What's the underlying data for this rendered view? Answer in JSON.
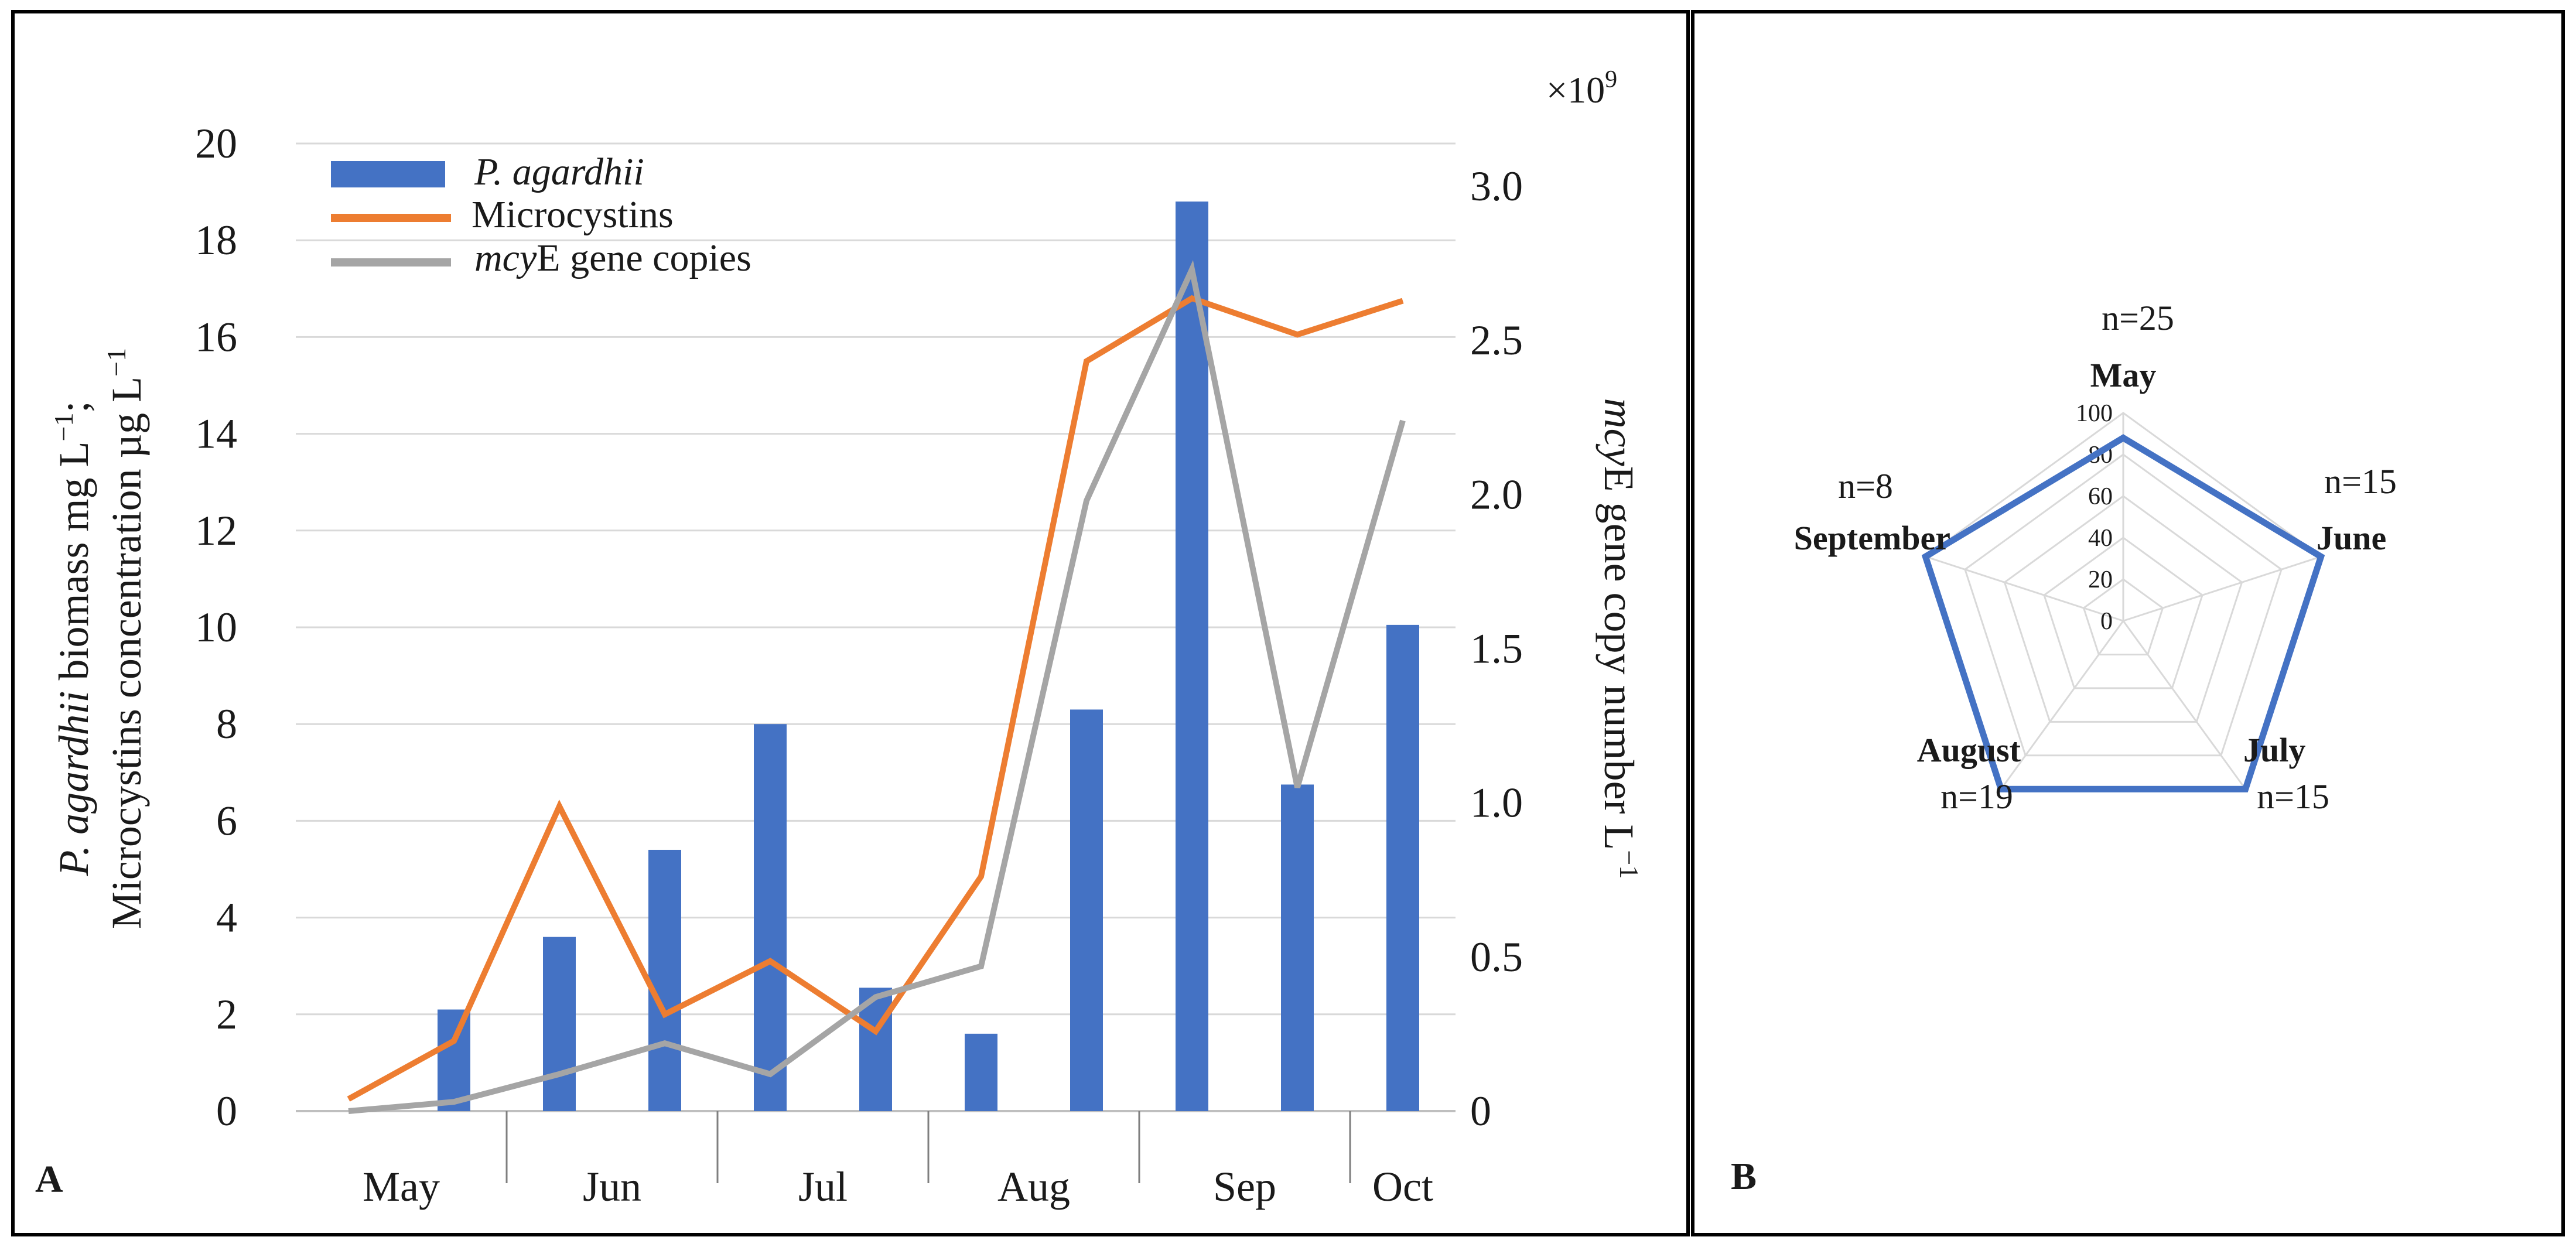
{
  "panels": {
    "A": {
      "letter": "A"
    },
    "B": {
      "letter": "B"
    }
  },
  "chart_data": [
    {
      "panel": "A",
      "type": "bar",
      "title": "",
      "xlabel": "",
      "ylabel_italic": "P. agardhii",
      "ylabel_rest_1": " biomass mg L",
      "ylabel_sup_1": "−1",
      "ylabel_rest_2": ";",
      "ylabel_line2": "Microcystins concentration µg L",
      "ylabel_sup_2": "−1",
      "y2label_italic": "mcy",
      "y2label_rest": "E gene copy number L",
      "y2label_sup": "−1",
      "y2_multiplier_base": "×10",
      "y2_multiplier_exp": "9",
      "ylim": [
        0,
        20
      ],
      "yticks": [
        "0",
        "2",
        "4",
        "6",
        "8",
        "10",
        "12",
        "14",
        "16",
        "18",
        "20"
      ],
      "y2lim": [
        0,
        3.0
      ],
      "y2ticks": [
        "0",
        "0.5",
        "1.0",
        "1.5",
        "2.0",
        "2.5",
        "3.0"
      ],
      "month_groups": [
        "May",
        "Jun",
        "Jul",
        "Aug",
        "Sep",
        "Oct"
      ],
      "month_point_counts": [
        2,
        2,
        2,
        2,
        2,
        1
      ],
      "series": [
        {
          "name": "P. agardhii",
          "legend_label": "P. agardhii",
          "kind": "bar",
          "axis": "left",
          "color": "#4472c4",
          "values": [
            null,
            2.1,
            3.6,
            5.4,
            8.0,
            2.55,
            1.6,
            8.3,
            18.8,
            6.75,
            10.05
          ]
        },
        {
          "name": "Microcystins",
          "legend_label": "Microcystins",
          "kind": "line",
          "axis": "left",
          "color": "#ed7d31",
          "values": [
            0.25,
            1.45,
            6.3,
            2.0,
            3.1,
            1.65,
            4.85,
            15.5,
            16.8,
            16.05,
            16.75
          ]
        },
        {
          "name": "mcyE gene copies",
          "legend_label_italic": "mcy",
          "legend_label_rest": "E gene copies",
          "kind": "line",
          "axis": "right",
          "color": "#a5a5a5",
          "values": [
            0.0,
            0.03,
            0.12,
            0.22,
            0.12,
            0.37,
            0.47,
            1.98,
            2.73,
            1.05,
            2.24
          ]
        }
      ]
    },
    {
      "panel": "B",
      "type": "radar",
      "title": "",
      "rlim": [
        0,
        100
      ],
      "rticks": [
        "0",
        "20",
        "40",
        "60",
        "80",
        "100"
      ],
      "color": "#4472c4",
      "axes": [
        {
          "label": "May",
          "n": "n=25",
          "value": 88
        },
        {
          "label": "June",
          "n": "n=15",
          "value": 100
        },
        {
          "label": "July",
          "n": "n=15",
          "value": 100
        },
        {
          "label": "August",
          "n": "n=19",
          "value": 100
        },
        {
          "label": "September",
          "n": "n=8",
          "value": 100
        }
      ]
    }
  ]
}
